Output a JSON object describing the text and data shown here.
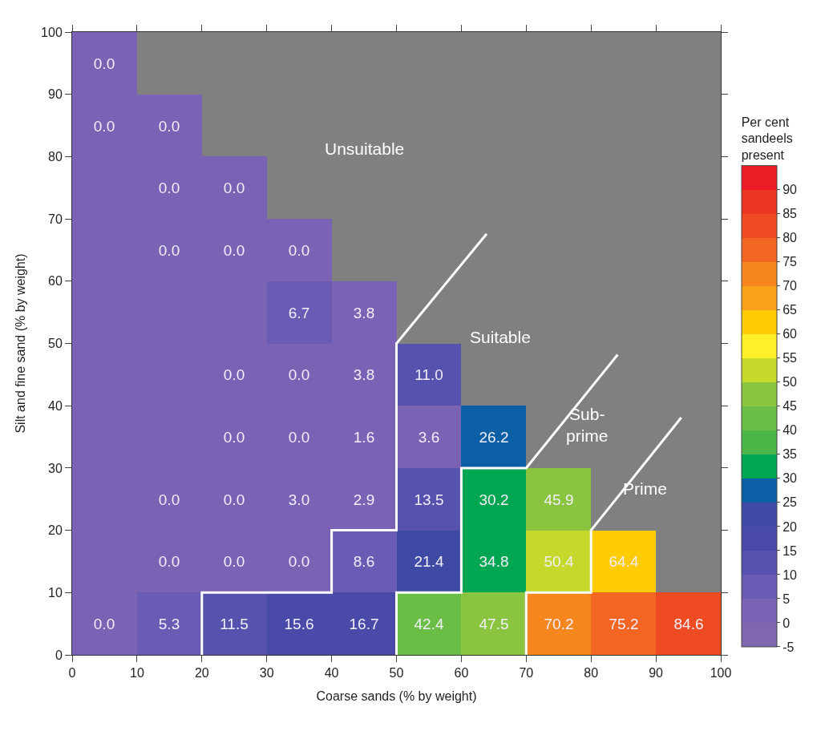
{
  "chart_data": {
    "type": "heatmap",
    "xlabel": "Coarse sands (% by weight)",
    "ylabel": "Silt and fine sand (% by weight)",
    "clabel": "Per cent\nsandeels\npresent",
    "xlim": [
      0,
      100
    ],
    "xticks": [
      0,
      10,
      20,
      30,
      40,
      50,
      60,
      70,
      80,
      90,
      100
    ],
    "ylim": [
      0,
      100
    ],
    "yticks": [
      0,
      10,
      20,
      30,
      40,
      50,
      60,
      70,
      80,
      90,
      100
    ],
    "clim": [
      -5,
      95
    ],
    "cticks": [
      -5,
      0,
      5,
      10,
      15,
      20,
      25,
      30,
      35,
      40,
      45,
      50,
      55,
      60,
      65,
      70,
      75,
      80,
      85,
      90
    ],
    "colors": [
      "#7e66b0",
      "#7a62b4",
      "#6a5cb4",
      "#5652ad",
      "#4a4aa8",
      "#3f4aa4",
      "#0b5fa5",
      "#00a651",
      "#4cb748",
      "#6abd45",
      "#8bc53f",
      "#c5d92d",
      "#fff02a",
      "#ffcb05",
      "#f9a11b",
      "#f6871f",
      "#f26522",
      "#ef4b23",
      "#ed3524",
      "#ec1c24"
    ],
    "cells": [
      [
        0,
        null,
        null,
        null,
        null,
        null,
        null,
        null,
        null,
        null
      ],
      [
        0,
        0,
        null,
        null,
        null,
        null,
        null,
        null,
        null,
        null
      ],
      [
        0,
        0,
        0,
        null,
        null,
        null,
        null,
        null,
        null,
        null
      ],
      [
        0,
        0,
        0,
        0,
        null,
        null,
        null,
        null,
        null,
        null
      ],
      [
        0,
        0,
        0,
        6.7,
        3.8,
        null,
        null,
        null,
        null,
        null
      ],
      [
        0,
        0,
        0,
        0,
        3.8,
        11.0,
        null,
        null,
        null,
        null
      ],
      [
        0,
        0,
        0,
        0,
        1.6,
        3.6,
        26.2,
        null,
        null,
        null
      ],
      [
        0,
        0,
        0,
        3.0,
        2.9,
        13.5,
        30.2,
        45.9,
        null,
        null
      ],
      [
        0,
        0,
        0,
        0,
        8.6,
        21.4,
        34.8,
        50.4,
        64.4,
        null
      ],
      [
        0,
        5.3,
        11.5,
        15.6,
        16.7,
        42.4,
        47.5,
        70.2,
        75.2,
        84.6
      ]
    ],
    "cell_labels": [
      [
        "0.0",
        null,
        null,
        null,
        null,
        null,
        null,
        null,
        null,
        null
      ],
      [
        "0.0",
        "0.0",
        null,
        null,
        null,
        null,
        null,
        null,
        null,
        null
      ],
      [
        null,
        "0.0",
        "0.0",
        null,
        null,
        null,
        null,
        null,
        null,
        null
      ],
      [
        null,
        "0.0",
        "0.0",
        "0.0",
        null,
        null,
        null,
        null,
        null,
        null
      ],
      [
        null,
        null,
        null,
        "6.7",
        "3.8",
        null,
        null,
        null,
        null,
        null
      ],
      [
        null,
        null,
        "0.0",
        "0.0",
        "3.8",
        "11.0",
        null,
        null,
        null,
        null
      ],
      [
        null,
        null,
        "0.0",
        "0.0",
        "1.6",
        "3.6",
        "26.2",
        null,
        null,
        null
      ],
      [
        null,
        "0.0",
        "0.0",
        "3.0",
        "2.9",
        "13.5",
        "30.2",
        "45.9",
        null,
        null
      ],
      [
        null,
        "0.0",
        "0.0",
        "0.0",
        "8.6",
        "21.4",
        "34.8",
        "50.4",
        "64.4",
        null
      ],
      [
        "0.0",
        "5.3",
        "11.5",
        "15.6",
        "16.7",
        "42.4",
        "47.5",
        "70.2",
        "75.2",
        "84.6"
      ]
    ],
    "series": [
      {
        "type": "line",
        "color": "#ffffff",
        "x": [
          63.9,
          50,
          50,
          40,
          40,
          20,
          20
        ],
        "values": [
          67.6,
          50,
          20,
          20,
          10,
          10,
          0
        ]
      },
      {
        "type": "line",
        "color": "#ffffff",
        "x": [
          84.1,
          70,
          60,
          60,
          50,
          50
        ],
        "values": [
          48.2,
          30,
          30,
          10,
          10,
          0
        ]
      },
      {
        "type": "line",
        "color": "#ffffff",
        "x": [
          93.9,
          80,
          80,
          70,
          70
        ],
        "values": [
          38.1,
          20,
          10,
          10,
          0
        ]
      }
    ],
    "annotations": [
      "Unsuitable",
      "Suitable",
      "Sub-\nprime",
      "Prime"
    ],
    "grid": false
  }
}
